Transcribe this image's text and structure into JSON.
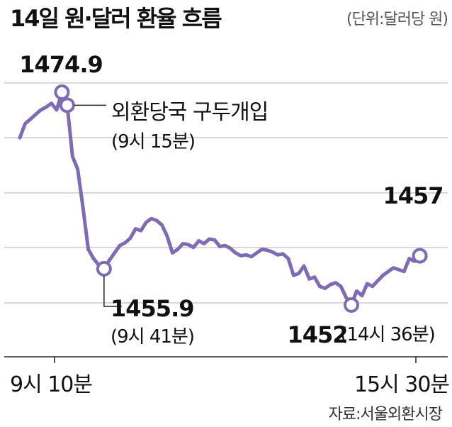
{
  "title": "14일 원·달러 환율 흐름",
  "unit": "(단위:달러당 원)",
  "source": "자료:서울외환시장",
  "colors": {
    "line": "#7e6bb3",
    "grid": "#b0b0b0",
    "marker_fill": "#ffffff"
  },
  "chart_data": {
    "type": "line",
    "xlabel": "",
    "ylabel": "",
    "x_ticks": [
      "9시 10분",
      "15시 30분"
    ],
    "series": [
      {
        "values": [
          1470.0,
          1471.5,
          1472.0,
          1472.5,
          1473.0,
          1473.3,
          1473.7,
          1473.0,
          1474.9,
          1473.5,
          1468.0,
          1466.6,
          1462.5,
          1458.0,
          1457.0,
          1456.3,
          1455.9,
          1456.8,
          1457.6,
          1458.4,
          1458.7,
          1459.2,
          1460.2,
          1460.0,
          1460.9,
          1461.3,
          1461.1,
          1460.6,
          1459.4,
          1457.6,
          1458.0,
          1458.6,
          1458.5,
          1458.2,
          1458.9,
          1458.6,
          1459.1,
          1459.0,
          1458.3,
          1458.4,
          1458.1,
          1457.6,
          1457.3,
          1457.4,
          1457.2,
          1457.6,
          1458.0,
          1457.9,
          1457.7,
          1457.4,
          1457.5,
          1457.0,
          1455.2,
          1455.4,
          1456.2,
          1454.8,
          1455.0,
          1454.0,
          1453.8,
          1454.2,
          1454.4,
          1454.0,
          1452.8,
          1452.0,
          1453.5,
          1453.0,
          1454.3,
          1454.0,
          1454.6,
          1455.2,
          1455.6,
          1456.0,
          1455.8,
          1455.6,
          1457.0,
          1456.7,
          1457.3,
          1457.0
        ]
      }
    ],
    "annotations": [
      {
        "label": "1474.9",
        "value": 1474.9,
        "note": ""
      },
      {
        "label": "",
        "value": 1473.5,
        "note": "외환당국 구두개입",
        "subnote": "(9시 15분)"
      },
      {
        "label": "1455.9",
        "value": 1455.9,
        "note": "(9시 41분)"
      },
      {
        "label": "1452",
        "value": 1452.0,
        "note": "(14시 36분)"
      },
      {
        "label": "1457",
        "value": 1457.0,
        "note": ""
      }
    ],
    "grid": true,
    "legend": "none"
  }
}
